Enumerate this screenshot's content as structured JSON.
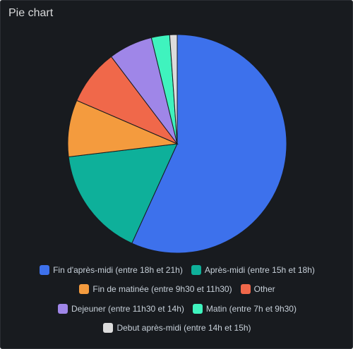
{
  "panel": {
    "title": "Pie chart"
  },
  "chart_data": {
    "type": "pie",
    "title": "Pie chart",
    "legend_position": "bottom",
    "slices": [
      {
        "label": "Fin d'après-midi (entre 18h et 21h)",
        "value": 56.8,
        "color": "#3d71ec"
      },
      {
        "label": "Après-midi (entre 15h et 18h)",
        "value": 16.3,
        "color": "#0eb09a"
      },
      {
        "label": "Fin de matinée (entre 9h30 et 11h30)",
        "value": 8.4,
        "color": "#f49b3e"
      },
      {
        "label": "Other",
        "value": 8.2,
        "color": "#f0684a"
      },
      {
        "label": "Dejeuner (entre 11h30 et 14h)",
        "value": 6.5,
        "color": "#9f86e8"
      },
      {
        "label": "Matin (entre 7h et 9h30)",
        "value": 2.7,
        "color": "#3ff3be"
      },
      {
        "label": "Debut après-midi (entre 14h et 15h)",
        "value": 1.1,
        "color": "#dcdcdc"
      }
    ]
  }
}
